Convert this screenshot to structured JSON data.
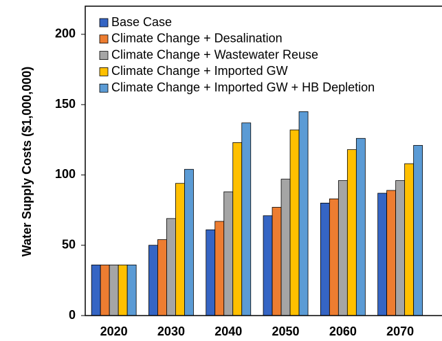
{
  "chart_data": {
    "type": "bar",
    "y_label": "Water Supply Costs ($1,000,000)",
    "categories": [
      "2020",
      "2030",
      "2040",
      "2050",
      "2060",
      "2070"
    ],
    "series": [
      {
        "name": "Base Case",
        "color": "#3565c4",
        "values": [
          36,
          50,
          61,
          71,
          80,
          87
        ]
      },
      {
        "name": "Climate Change + Desalination",
        "color": "#ed7d31",
        "values": [
          36,
          54,
          67,
          77,
          83,
          89
        ]
      },
      {
        "name": "Climate Change + Wastewater Reuse",
        "color": "#a5a5a5",
        "values": [
          36,
          69,
          88,
          97,
          96,
          96
        ]
      },
      {
        "name": "Climate Change + Imported GW",
        "color": "#ffc000",
        "values": [
          36,
          94,
          123,
          132,
          118,
          108
        ]
      },
      {
        "name": "Climate Change + Imported GW + HB Depletion",
        "color": "#5b9bd5",
        "values": [
          36,
          104,
          137,
          145,
          126,
          121
        ]
      }
    ],
    "ylim": [
      0,
      220
    ],
    "yticks": [
      0,
      50,
      100,
      150,
      200
    ],
    "grid": false,
    "legend": "upper left"
  }
}
